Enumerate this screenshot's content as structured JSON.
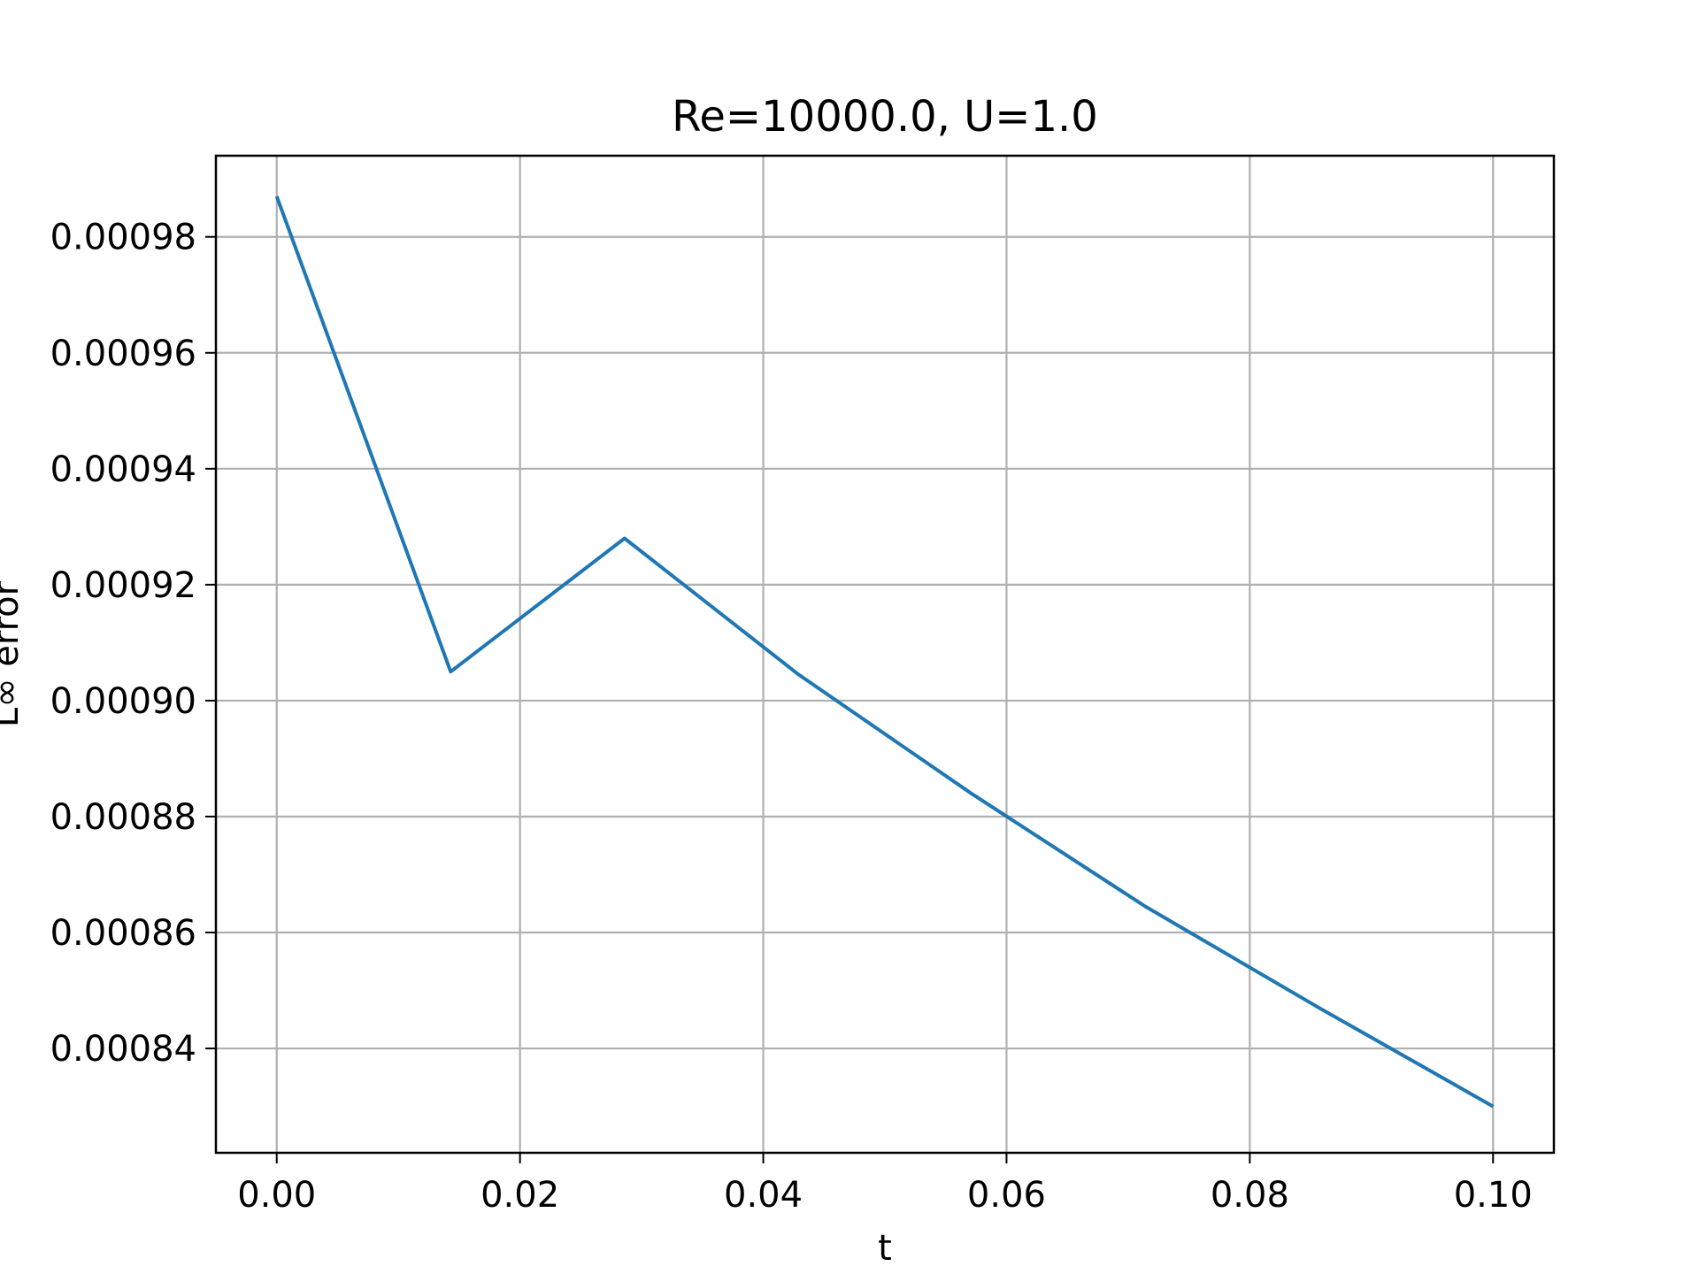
{
  "chart_data": {
    "type": "line",
    "title": "Re=10000.0, U=1.0",
    "xlabel": "t",
    "ylabel": "L∞ error",
    "xlim": [
      -0.005,
      0.105
    ],
    "ylim": [
      0.000822,
      0.000994
    ],
    "grid": true,
    "x_ticks": [
      0.0,
      0.02,
      0.04,
      0.06,
      0.08,
      0.1
    ],
    "x_tick_labels": [
      "0.00",
      "0.02",
      "0.04",
      "0.06",
      "0.08",
      "0.10"
    ],
    "y_ticks": [
      0.00084,
      0.00086,
      0.00088,
      0.0009,
      0.00092,
      0.00094,
      0.00096,
      0.00098
    ],
    "y_tick_labels": [
      "0.00084",
      "0.00086",
      "0.00088",
      "0.00090",
      "0.00092",
      "0.00094",
      "0.00096",
      "0.00098"
    ],
    "series": [
      {
        "color": "#1f77b4",
        "x": [
          0.0,
          0.0143,
          0.0286,
          0.0429,
          0.0571,
          0.0714,
          0.0857,
          0.1
        ],
        "y": [
          0.000987,
          0.000905,
          0.000928,
          0.0009045,
          0.000884,
          0.0008645,
          0.000847,
          0.00083
        ]
      }
    ]
  },
  "colors": {
    "grid": "#b0b0b0",
    "axes": "#000000",
    "background": "#ffffff"
  }
}
